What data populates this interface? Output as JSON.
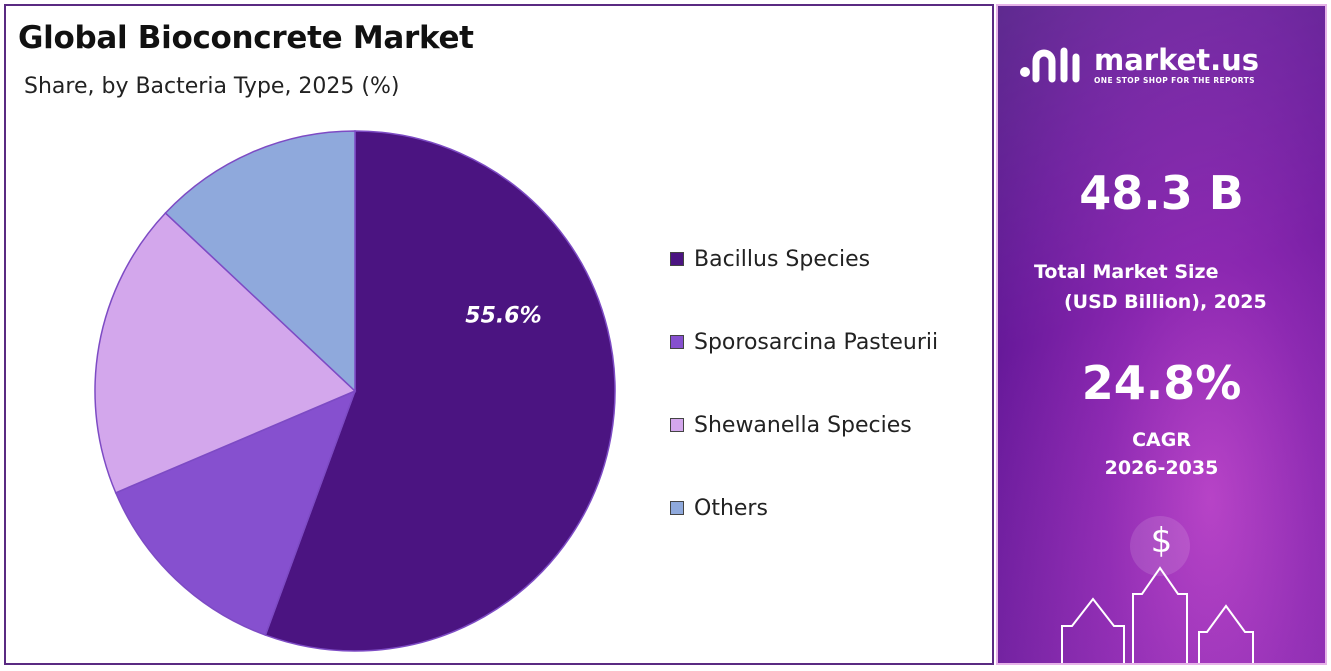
{
  "chart_data": {
    "type": "pie",
    "title": "Global Bioconcrete Market",
    "subtitle": "Share, by Bacteria Type, 2025 (%)",
    "categories": [
      "Bacillus Species",
      "Sporosarcina Pasteurii",
      "Shewanella Species",
      "Others"
    ],
    "values": [
      55.6,
      13.0,
      18.4,
      13.0
    ],
    "colors": [
      "#4b1481",
      "#8650cf",
      "#d3a7ec",
      "#8fa9dc"
    ],
    "data_labels": [
      "55.6%",
      "",
      "",
      ""
    ],
    "legend_position": "right",
    "start": "top",
    "direction": "clockwise"
  },
  "sidebar": {
    "brand": "market.us",
    "tagline": "ONE STOP SHOP FOR THE REPORTS",
    "market_size": "48.3 B",
    "market_size_label_1": "Total Market Size",
    "market_size_label_2": "(USD Billion), 2025",
    "cagr": "24.8%",
    "cagr_label": "CAGR",
    "cagr_period": "2026-2035",
    "currency_symbol": "$"
  }
}
